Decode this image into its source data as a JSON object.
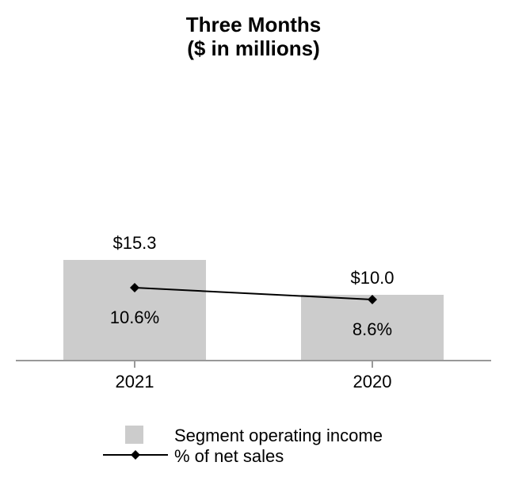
{
  "title": {
    "line1": "Three Months",
    "line2": "($ in millions)"
  },
  "chart_data": {
    "type": "bar+line combo",
    "title": "Three Months ($ in millions)",
    "categories": [
      "2021",
      "2020"
    ],
    "series": [
      {
        "name": "Segment operating income",
        "type": "bar",
        "values": [
          15.3,
          10.0
        ],
        "labels": [
          "$15.3",
          "$10.0"
        ],
        "color": "#cccccc"
      },
      {
        "name": "% of net sales",
        "type": "line",
        "marker": "diamond",
        "values": [
          10.6,
          8.6
        ],
        "labels": [
          "10.6%",
          "8.6%"
        ],
        "color": "#000000"
      }
    ],
    "xlabel": "",
    "ylabel": "",
    "grid": false,
    "axis_color": "#999999",
    "legend_position": "bottom"
  }
}
